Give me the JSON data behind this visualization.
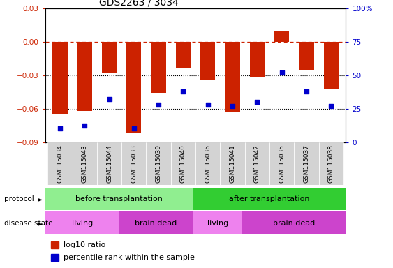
{
  "title": "GDS2263 / 3034",
  "samples": [
    "GSM115034",
    "GSM115043",
    "GSM115044",
    "GSM115033",
    "GSM115039",
    "GSM115040",
    "GSM115036",
    "GSM115041",
    "GSM115042",
    "GSM115035",
    "GSM115037",
    "GSM115038"
  ],
  "log10_ratio": [
    -0.065,
    -0.062,
    -0.028,
    -0.082,
    -0.046,
    -0.024,
    -0.034,
    -0.063,
    -0.032,
    0.01,
    -0.025,
    -0.043
  ],
  "percentile_rank": [
    10,
    12,
    32,
    10,
    28,
    38,
    28,
    27,
    30,
    52,
    38,
    27
  ],
  "bar_color": "#cc2200",
  "dot_color": "#0000cc",
  "ylim_left": [
    -0.09,
    0.03
  ],
  "ylim_right": [
    0,
    100
  ],
  "yticks_left": [
    -0.09,
    -0.06,
    -0.03,
    0,
    0.03
  ],
  "yticks_right": [
    0,
    25,
    50,
    75,
    100
  ],
  "protocol_labels": [
    "before transplantation",
    "after transplantation"
  ],
  "protocol_color_light": "#90ee90",
  "protocol_color_dark": "#32cd32",
  "disease_labels": [
    "living",
    "brain dead",
    "living",
    "brain dead"
  ],
  "disease_color_light": "#ee82ee",
  "disease_color_dark": "#cc44cc",
  "sample_bg": "#d3d3d3",
  "bg_color": "white",
  "dashed_zero_color": "#cc2200",
  "legend_red_label": "log10 ratio",
  "legend_blue_label": "percentile rank within the sample"
}
